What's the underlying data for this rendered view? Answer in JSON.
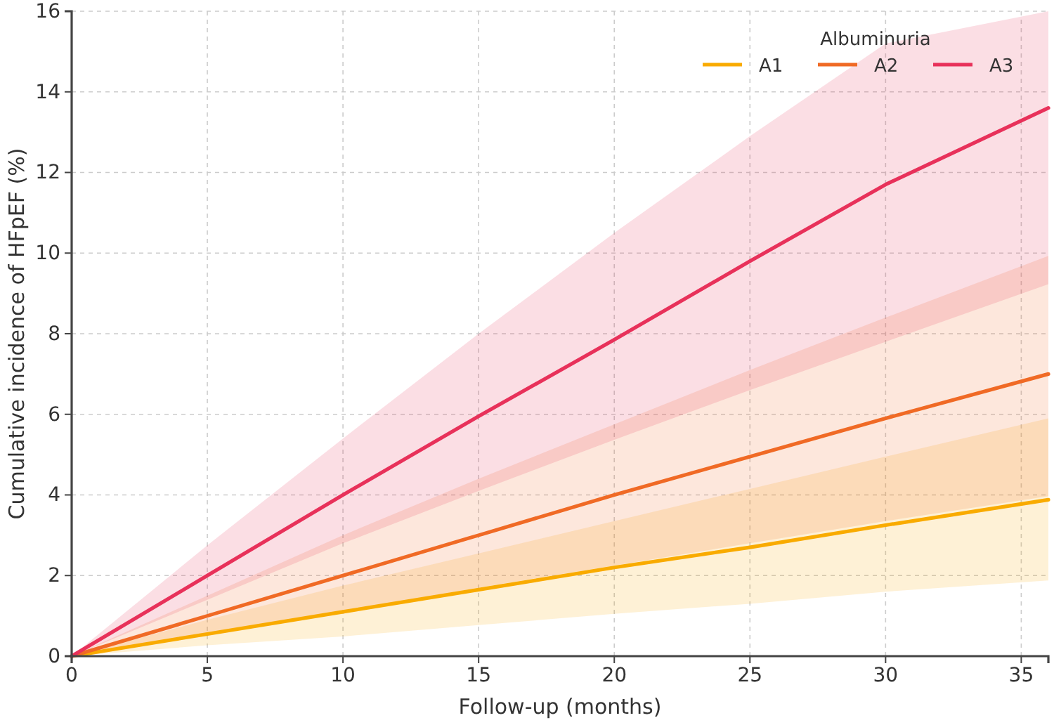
{
  "chart_data": {
    "type": "line",
    "xlabel": "Follow-up (months)",
    "ylabel": "Cumulative incidence of HFpEF (%)",
    "legend_title": "Albuminuria",
    "legend": "top right",
    "grid": true,
    "marker": "none",
    "line_style": "solid",
    "xlim": [
      0,
      36
    ],
    "xticks": [
      0,
      5,
      10,
      15,
      20,
      25,
      30,
      35
    ],
    "ylim": [
      0,
      16
    ],
    "yticks": [
      0,
      2,
      4,
      6,
      8,
      10,
      12,
      14,
      16
    ],
    "series": [
      {
        "name": "A1",
        "color": "#f9ab00",
        "x": [
          0,
          5,
          10,
          15,
          20,
          25,
          30,
          36
        ],
        "values": [
          0,
          0.55,
          1.1,
          1.65,
          2.2,
          2.7,
          3.25,
          3.88
        ],
        "lower": [
          0,
          0.27,
          0.49,
          0.77,
          1.05,
          1.3,
          1.6,
          1.88
        ],
        "upper": [
          0,
          0.9,
          1.75,
          2.55,
          3.35,
          4.15,
          4.95,
          5.9
        ]
      },
      {
        "name": "A2",
        "color": "#f06a25",
        "x": [
          0,
          5,
          10,
          15,
          20,
          25,
          30,
          36
        ],
        "values": [
          0,
          1.0,
          2.0,
          3.0,
          4.0,
          4.95,
          5.9,
          7.0
        ],
        "lower": [
          0,
          0.55,
          1.1,
          1.7,
          2.25,
          2.8,
          3.35,
          3.97
        ],
        "upper": [
          0,
          1.5,
          3.0,
          4.4,
          5.75,
          7.1,
          8.4,
          9.93
        ]
      },
      {
        "name": "A3",
        "color": "#e8315a",
        "x": [
          0,
          5,
          10,
          15,
          20,
          25,
          30,
          36
        ],
        "values": [
          0,
          2.0,
          4.0,
          5.95,
          7.85,
          9.8,
          11.7,
          13.6
        ],
        "lower": [
          0,
          1.4,
          2.8,
          4.1,
          5.37,
          6.6,
          7.8,
          9.23
        ],
        "upper": [
          0,
          2.75,
          5.4,
          8.0,
          10.5,
          12.9,
          15.2,
          16
        ]
      }
    ]
  }
}
